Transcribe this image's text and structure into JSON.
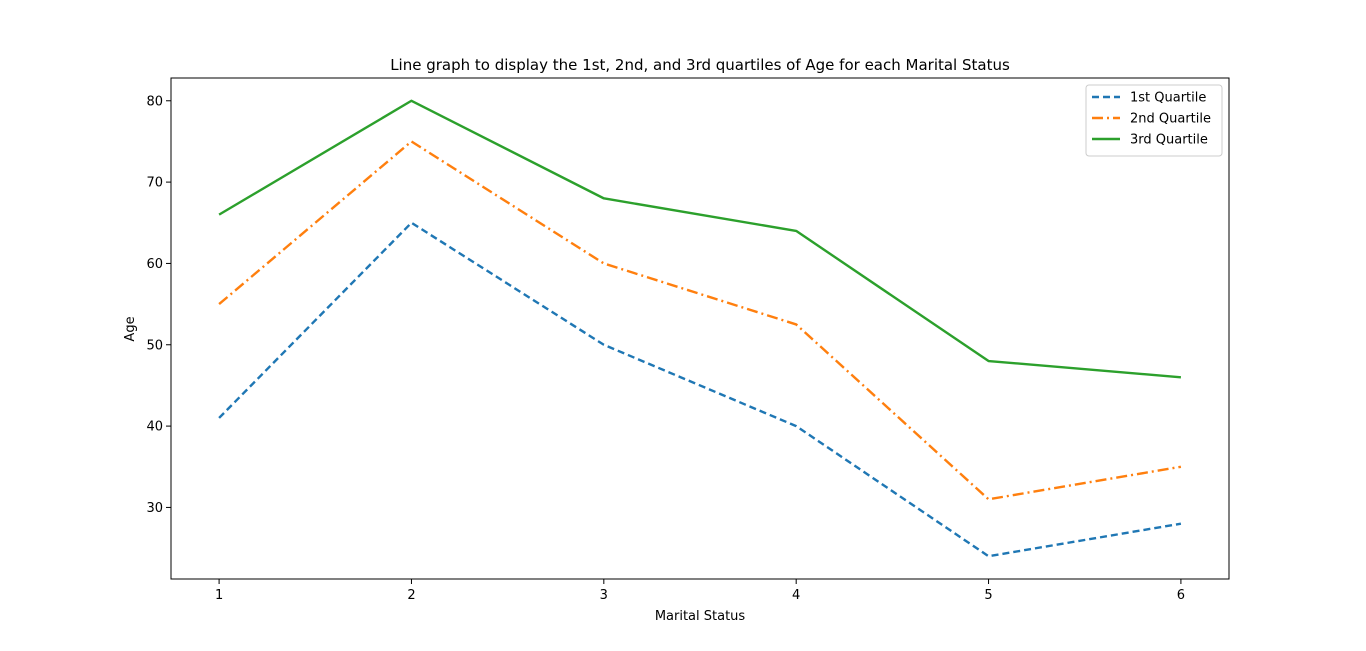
{
  "chart_data": {
    "type": "line",
    "title": "Line graph to display the 1st, 2nd, and 3rd quartiles of Age for each Marital Status",
    "xlabel": "Marital Status",
    "ylabel": "Age",
    "x": [
      1,
      2,
      3,
      4,
      5,
      6
    ],
    "xlim": [
      0.75,
      6.25
    ],
    "ylim": [
      21.2,
      82.8
    ],
    "xticks": [
      1,
      2,
      3,
      4,
      5,
      6
    ],
    "yticks": [
      30,
      40,
      50,
      60,
      70,
      80
    ],
    "grid": false,
    "legend_position": "top-right",
    "series": [
      {
        "name": "1st Quartile",
        "values": [
          41,
          65,
          50,
          40,
          24,
          28
        ],
        "color": "#1f77b4",
        "style": "dashed"
      },
      {
        "name": "2nd Quartile",
        "values": [
          55,
          75,
          60,
          52.5,
          31,
          35
        ],
        "color": "#ff7f0e",
        "style": "dashdot"
      },
      {
        "name": "3rd Quartile",
        "values": [
          66,
          80,
          68,
          64,
          48,
          46
        ],
        "color": "#2ca02c",
        "style": "solid"
      }
    ]
  }
}
